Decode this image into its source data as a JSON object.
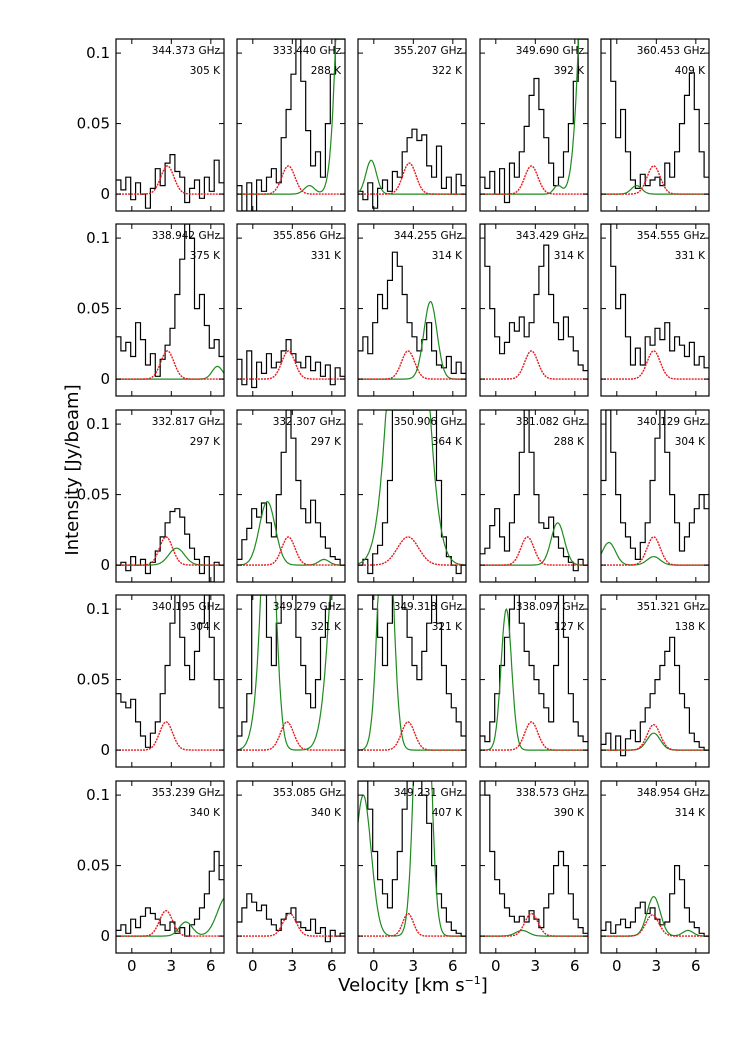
{
  "chart_data": {
    "type": "line",
    "ylabel": "Intensity [Jy/beam]",
    "xlabel": "Velocity [km s",
    "xlabel_sup": "−1",
    "xlabel_close": "]",
    "xlim": [
      -1.2,
      7.0
    ],
    "ylim": [
      -0.012,
      0.11
    ],
    "xticks": [
      0,
      3,
      6
    ],
    "xticklabels": [
      "0",
      "3",
      "6"
    ],
    "yticks": [
      0,
      0.05,
      0.1
    ],
    "yticklabels": [
      "0",
      "0.05",
      "0.1"
    ],
    "colors": {
      "observed": "#000000",
      "red_fit": "#e8191c",
      "green_fit": "#1f8a1f"
    },
    "panels": [
      {
        "freq": "344.373 GHz",
        "temp": "305 K",
        "red": [
          0.02,
          2.7,
          0.5
        ],
        "green": [],
        "obs": [
          0.01,
          0.003,
          0.012,
          -0.004,
          0.008,
          0.0,
          -0.01,
          0.004,
          0.018,
          0.006,
          0.022,
          0.028,
          0.016,
          0.012,
          -0.006,
          0.004,
          0.01,
          -0.003,
          0.012,
          0.002,
          0.024,
          0.008
        ]
      },
      {
        "freq": "333.440 GHz",
        "temp": "288 K",
        "red": [
          0.02,
          2.7,
          0.5
        ],
        "green": [
          [
            0.006,
            4.3,
            0.4
          ],
          [
            0.35,
            7.2,
            0.6
          ]
        ],
        "obs": [
          0.006,
          -0.014,
          0.008,
          -0.012,
          0.01,
          0.002,
          0.012,
          0.018,
          0.008,
          0.04,
          0.06,
          0.085,
          0.12,
          0.08,
          0.045,
          0.02,
          0.03,
          0.012,
          0.05,
          0.085,
          0.12,
          0.12
        ]
      },
      {
        "freq": "355.207 GHz",
        "temp": "322 K",
        "red": [
          0.022,
          2.7,
          0.5
        ],
        "green": [
          [
            0.024,
            -0.2,
            0.4
          ]
        ],
        "obs": [
          0.002,
          -0.004,
          0.008,
          -0.01,
          0.004,
          0.01,
          0.002,
          0.016,
          0.012,
          0.03,
          0.04,
          0.046,
          0.038,
          0.042,
          0.02,
          0.012,
          0.034,
          0.004,
          0.012,
          0.0,
          0.014,
          0.006
        ]
      },
      {
        "freq": "349.690 GHz",
        "temp": "392 K",
        "red": [
          0.02,
          2.7,
          0.5
        ],
        "green": [
          [
            0.006,
            4.7,
            0.3
          ],
          [
            0.4,
            7.4,
            0.7
          ]
        ],
        "obs": [
          0.012,
          0.004,
          0.016,
          0.0,
          0.018,
          -0.006,
          0.022,
          0.012,
          0.03,
          0.048,
          0.07,
          0.082,
          0.06,
          0.04,
          0.022,
          0.006,
          0.012,
          0.03,
          0.05,
          0.08,
          0.11,
          0.12
        ]
      },
      {
        "freq": "360.453 GHz",
        "temp": "409 K",
        "red": [
          0.02,
          2.8,
          0.5
        ],
        "green": [
          [
            0.006,
            1.5,
            0.4
          ]
        ],
        "obs": [
          0.11,
          0.11,
          0.08,
          0.04,
          0.06,
          0.03,
          0.01,
          0.004,
          0.014,
          0.006,
          0.01,
          0.012,
          0.006,
          0.022,
          0.012,
          0.03,
          0.05,
          0.07,
          0.086,
          0.06,
          0.03,
          0.012
        ]
      },
      {
        "freq": "338.942 GHz",
        "temp": "375 K",
        "red": [
          0.02,
          2.7,
          0.5
        ],
        "green": [
          [
            0.009,
            6.5,
            0.4
          ]
        ],
        "obs": [
          0.03,
          0.02,
          0.026,
          0.016,
          0.04,
          0.028,
          0.01,
          0.018,
          0.002,
          0.014,
          0.024,
          0.036,
          0.06,
          0.085,
          0.11,
          0.1,
          0.05,
          0.06,
          0.038,
          0.022,
          0.028,
          0.016
        ]
      },
      {
        "freq": "355.856 GHz",
        "temp": "331 K",
        "red": [
          0.02,
          2.7,
          0.5
        ],
        "green": [],
        "obs": [
          0.014,
          -0.004,
          0.02,
          -0.006,
          0.012,
          0.004,
          0.018,
          0.008,
          0.012,
          0.02,
          0.028,
          0.018,
          0.012,
          0.008,
          0.016,
          0.006,
          0.012,
          0.002,
          0.01,
          -0.004,
          0.008,
          0.002
        ]
      },
      {
        "freq": "344.255 GHz",
        "temp": "314 K",
        "red": [
          0.02,
          2.6,
          0.5
        ],
        "green": [
          [
            0.055,
            4.3,
            0.5
          ]
        ],
        "obs": [
          0.02,
          0.03,
          0.018,
          0.04,
          0.06,
          0.05,
          0.07,
          0.09,
          0.08,
          0.06,
          0.04,
          0.03,
          0.02,
          0.028,
          0.04,
          0.02,
          0.01,
          0.008,
          0.016,
          0.004,
          0.012,
          0.004
        ]
      },
      {
        "freq": "343.429 GHz",
        "temp": "314 K",
        "red": [
          0.02,
          2.7,
          0.5
        ],
        "green": [],
        "obs": [
          0.11,
          0.08,
          0.05,
          0.03,
          0.018,
          0.026,
          0.04,
          0.034,
          0.044,
          0.03,
          0.04,
          0.06,
          0.08,
          0.095,
          0.06,
          0.04,
          0.028,
          0.044,
          0.03,
          0.02,
          0.01,
          0.006
        ]
      },
      {
        "freq": "354.555 GHz",
        "temp": "331 K",
        "red": [
          0.02,
          2.8,
          0.5
        ],
        "green": [],
        "obs": [
          0.11,
          0.11,
          0.08,
          0.05,
          0.06,
          0.03,
          0.01,
          0.022,
          0.01,
          0.03,
          0.024,
          0.036,
          0.028,
          0.04,
          0.02,
          0.03,
          0.024,
          0.016,
          0.026,
          0.01,
          0.016,
          0.008
        ]
      },
      {
        "freq": "332.817 GHz",
        "temp": "297 K",
        "red": [
          0.02,
          2.6,
          0.5
        ],
        "green": [
          [
            0.012,
            3.4,
            0.6
          ]
        ],
        "obs": [
          0.0,
          0.002,
          -0.004,
          0.006,
          0.0,
          0.004,
          -0.006,
          0.002,
          0.01,
          0.02,
          0.03,
          0.038,
          0.04,
          0.034,
          0.022,
          0.012,
          0.004,
          -0.006,
          0.006,
          -0.012,
          0.002,
          0.0
        ]
      },
      {
        "freq": "332.307 GHz",
        "temp": "297 K",
        "red": [
          0.02,
          2.7,
          0.5
        ],
        "green": [
          [
            0.045,
            1.1,
            0.6
          ],
          [
            0.004,
            5.4,
            0.4
          ]
        ],
        "obs": [
          0.004,
          0.018,
          0.026,
          0.04,
          0.034,
          0.044,
          0.03,
          0.02,
          0.05,
          0.08,
          0.11,
          0.09,
          0.06,
          0.04,
          0.03,
          0.046,
          0.03,
          0.02,
          0.012,
          0.006,
          0.004,
          0.0
        ]
      },
      {
        "freq": "350.906 GHz",
        "temp": "364 K",
        "red": [
          0.02,
          2.6,
          0.8
        ],
        "green": [
          [
            0.35,
            2.6,
            1.1
          ]
        ],
        "obs": [
          0.0,
          0.004,
          -0.006,
          0.008,
          0.014,
          0.03,
          0.06,
          0.11,
          0.12,
          0.12,
          0.12,
          0.12,
          0.12,
          0.12,
          0.12,
          0.12,
          0.06,
          0.02,
          0.006,
          0.0,
          -0.006,
          0.0
        ]
      },
      {
        "freq": "331.082 GHz",
        "temp": "288 K",
        "red": [
          0.02,
          2.4,
          0.5
        ],
        "green": [
          [
            0.03,
            4.7,
            0.5
          ]
        ],
        "obs": [
          0.008,
          0.012,
          0.028,
          0.04,
          0.02,
          0.01,
          0.03,
          0.05,
          0.08,
          0.11,
          0.08,
          0.05,
          0.03,
          0.026,
          0.034,
          0.02,
          0.012,
          0.006,
          0.002,
          -0.004,
          0.004,
          0.0
        ]
      },
      {
        "freq": "340.129 GHz",
        "temp": "304 K",
        "red": [
          0.02,
          2.8,
          0.5
        ],
        "green": [
          [
            0.016,
            -0.6,
            0.5
          ],
          [
            0.006,
            2.8,
            0.5
          ]
        ],
        "obs": [
          0.06,
          0.11,
          0.08,
          0.05,
          0.03,
          0.02,
          0.012,
          0.004,
          0.016,
          0.03,
          0.06,
          0.09,
          0.11,
          0.08,
          0.05,
          0.03,
          0.01,
          0.02,
          0.03,
          0.04,
          0.05,
          0.04
        ]
      },
      {
        "freq": "340.195 GHz",
        "temp": "304 K",
        "red": [
          0.02,
          2.6,
          0.5
        ],
        "green": [],
        "obs": [
          0.04,
          0.034,
          0.03,
          0.036,
          0.02,
          0.01,
          0.002,
          0.012,
          0.02,
          0.04,
          0.06,
          0.09,
          0.11,
          0.08,
          0.06,
          0.05,
          0.07,
          0.09,
          0.11,
          0.08,
          0.05,
          0.03
        ]
      },
      {
        "freq": "349.279 GHz",
        "temp": "321 K",
        "red": [
          0.02,
          2.6,
          0.5
        ],
        "green": [
          [
            0.2,
            1.2,
            0.5
          ],
          [
            0.016,
            0.3,
            0.5
          ],
          [
            0.22,
            6.8,
            0.8
          ]
        ],
        "obs": [
          0.01,
          0.02,
          0.04,
          0.11,
          0.12,
          0.11,
          0.08,
          0.06,
          0.09,
          0.11,
          0.12,
          0.11,
          0.08,
          0.06,
          0.04,
          0.03,
          0.05,
          0.08,
          0.1,
          0.12,
          0.12,
          0.12
        ]
      },
      {
        "freq": "349.318 GHz",
        "temp": "321 K",
        "red": [
          0.02,
          2.6,
          0.5
        ],
        "green": [
          [
            0.22,
            0.9,
            0.5
          ]
        ],
        "obs": [
          0.11,
          0.12,
          0.12,
          0.1,
          0.08,
          0.06,
          0.09,
          0.11,
          0.12,
          0.1,
          0.08,
          0.06,
          0.05,
          0.07,
          0.09,
          0.11,
          0.09,
          0.06,
          0.04,
          0.03,
          0.02,
          0.01
        ]
      },
      {
        "freq": "338.097 GHz",
        "temp": "127 K",
        "red": [
          0.02,
          2.7,
          0.5
        ],
        "green": [
          [
            0.1,
            0.8,
            0.4
          ]
        ],
        "obs": [
          0.01,
          0.006,
          0.02,
          0.04,
          0.06,
          0.08,
          0.1,
          0.11,
          0.09,
          0.07,
          0.06,
          0.05,
          0.04,
          0.03,
          0.02,
          0.06,
          0.11,
          0.08,
          0.04,
          0.02,
          0.01,
          0.006
        ]
      },
      {
        "freq": "351.321 GHz",
        "temp": "138 K",
        "red": [
          0.018,
          2.8,
          0.5
        ],
        "green": [
          [
            0.012,
            2.8,
            0.5
          ]
        ],
        "obs": [
          0.004,
          0.012,
          0.0,
          0.01,
          -0.004,
          0.008,
          0.014,
          0.006,
          0.02,
          0.03,
          0.04,
          0.05,
          0.06,
          0.07,
          0.08,
          0.06,
          0.04,
          0.03,
          0.012,
          0.006,
          0.002,
          0.0
        ]
      },
      {
        "freq": "353.239 GHz",
        "temp": "340 K",
        "red": [
          0.018,
          2.6,
          0.5
        ],
        "green": [
          [
            0.01,
            4.1,
            0.5
          ],
          [
            0.028,
            7.2,
            0.7
          ]
        ],
        "obs": [
          0.004,
          0.008,
          0.002,
          0.012,
          0.006,
          0.014,
          0.02,
          0.016,
          0.012,
          0.008,
          0.004,
          0.01,
          0.002,
          0.006,
          0.0,
          0.008,
          0.012,
          0.02,
          0.03,
          0.046,
          0.06,
          0.04
        ]
      },
      {
        "freq": "353.085 GHz",
        "temp": "340 K",
        "red": [
          0.016,
          2.8,
          0.5
        ],
        "green": [],
        "obs": [
          0.01,
          0.02,
          0.03,
          0.024,
          0.018,
          0.022,
          0.012,
          0.008,
          0.004,
          0.012,
          0.016,
          0.02,
          0.01,
          0.006,
          0.004,
          0.012,
          0.002,
          0.006,
          -0.004,
          0.004,
          0.0,
          0.002
        ]
      },
      {
        "freq": "349.231 GHz",
        "temp": "407 K",
        "red": [
          0.016,
          2.6,
          0.4
        ],
        "green": [
          [
            0.3,
            3.7,
            0.5
          ],
          [
            0.1,
            -0.8,
            0.6
          ]
        ],
        "obs": [
          0.11,
          0.12,
          0.09,
          0.06,
          0.04,
          0.03,
          0.02,
          0.04,
          0.06,
          0.09,
          0.11,
          0.12,
          0.12,
          0.1,
          0.08,
          0.05,
          0.03,
          0.02,
          0.01,
          0.004,
          0.002,
          0.0
        ]
      },
      {
        "freq": "338.573 GHz",
        "temp": "390 K",
        "red": [
          0.016,
          2.7,
          0.5
        ],
        "green": [
          [
            0.004,
            2.0,
            0.5
          ]
        ],
        "obs": [
          0.11,
          0.1,
          0.06,
          0.04,
          0.03,
          0.02,
          0.014,
          0.01,
          0.014,
          0.01,
          0.018,
          0.012,
          0.006,
          0.02,
          0.03,
          0.05,
          0.06,
          0.05,
          0.03,
          0.012,
          0.006,
          0.002
        ]
      },
      {
        "freq": "348.954 GHz",
        "temp": "314 K",
        "red": [
          0.015,
          2.7,
          0.5
        ],
        "green": [
          [
            0.028,
            2.8,
            0.5
          ],
          [
            0.004,
            5.4,
            0.4
          ]
        ],
        "obs": [
          0.004,
          0.01,
          0.002,
          0.008,
          0.012,
          0.006,
          0.01,
          0.02,
          0.024,
          0.016,
          0.02,
          0.012,
          0.008,
          0.01,
          0.03,
          0.05,
          0.04,
          0.02,
          0.01,
          0.006,
          0.002,
          0.0
        ]
      }
    ]
  }
}
